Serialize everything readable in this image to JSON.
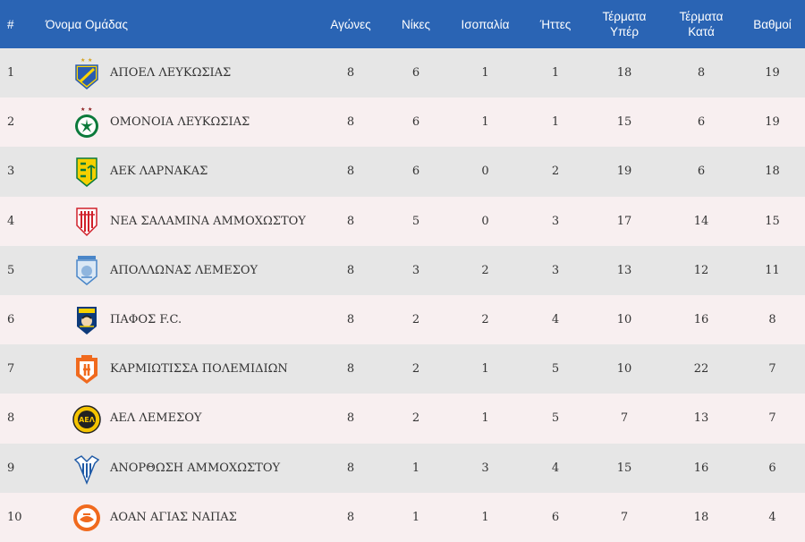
{
  "header": {
    "pos": "#",
    "team": "Όνομα Ομάδας",
    "played": "Αγώνες",
    "wins": "Νίκες",
    "draws": "Ισοπαλία",
    "losses": "Ήττες",
    "goals_for_1": "Τέρματα",
    "goals_for_2": "Υπέρ",
    "goals_against_1": "Τέρματα",
    "goals_against_2": "Κατά",
    "points": "Βαθμοί"
  },
  "rows": [
    {
      "pos": "1",
      "team": "ΑΠΟΕΛ ΛΕΥΚΩΣΙΑΣ",
      "logo": "apoel-logo",
      "played": "8",
      "wins": "6",
      "draws": "1",
      "losses": "1",
      "gf": "18",
      "ga": "8",
      "pts": "19"
    },
    {
      "pos": "2",
      "team": "ΟΜΟΝΟΙΑ ΛΕΥΚΩΣΙΑΣ",
      "logo": "omonoia-logo",
      "played": "8",
      "wins": "6",
      "draws": "1",
      "losses": "1",
      "gf": "15",
      "ga": "6",
      "pts": "19"
    },
    {
      "pos": "3",
      "team": "ΑΕΚ ΛΑΡΝΑΚΑΣ",
      "logo": "aek-logo",
      "played": "8",
      "wins": "6",
      "draws": "0",
      "losses": "2",
      "gf": "19",
      "ga": "6",
      "pts": "18"
    },
    {
      "pos": "4",
      "team": "ΝΕΑ ΣΑΛΑΜΙΝΑ ΑΜΜΟΧΩΣΤΟΥ",
      "logo": "nea-salamina-logo",
      "played": "8",
      "wins": "5",
      "draws": "0",
      "losses": "3",
      "gf": "17",
      "ga": "14",
      "pts": "15"
    },
    {
      "pos": "5",
      "team": "ΑΠΟΛΛΩΝΑΣ ΛΕΜΕΣΟΥ",
      "logo": "apollon-logo",
      "played": "8",
      "wins": "3",
      "draws": "2",
      "losses": "3",
      "gf": "13",
      "ga": "12",
      "pts": "11"
    },
    {
      "pos": "6",
      "team": "ΠΑΦΟΣ F.C.",
      "logo": "pafos-logo",
      "played": "8",
      "wins": "2",
      "draws": "2",
      "losses": "4",
      "gf": "10",
      "ga": "16",
      "pts": "8"
    },
    {
      "pos": "7",
      "team": "ΚΑΡΜΙΩΤΙΣΣΑ ΠΟΛΕΜΙΔΙΩΝ",
      "logo": "karmiotissa-logo",
      "played": "8",
      "wins": "2",
      "draws": "1",
      "losses": "5",
      "gf": "10",
      "ga": "22",
      "pts": "7"
    },
    {
      "pos": "8",
      "team": "ΑΕΛ ΛΕΜΕΣΟΥ",
      "logo": "ael-logo",
      "played": "8",
      "wins": "2",
      "draws": "1",
      "losses": "5",
      "gf": "7",
      "ga": "13",
      "pts": "7"
    },
    {
      "pos": "9",
      "team": "ΑΝΟΡΘΩΣΗ ΑΜΜΟΧΩΣΤΟΥ",
      "logo": "anorthosis-logo",
      "played": "8",
      "wins": "1",
      "draws": "3",
      "losses": "4",
      "gf": "15",
      "ga": "16",
      "pts": "6"
    },
    {
      "pos": "10",
      "team": "ΑΟΑΝ ΑΓΙΑΣ ΝΑΠΑΣ",
      "logo": "aoan-logo",
      "played": "8",
      "wins": "1",
      "draws": "1",
      "losses": "6",
      "gf": "7",
      "ga": "18",
      "pts": "4"
    }
  ],
  "colors": {
    "header_bg": "#2a64b4",
    "row_odd": "#e6e6e6",
    "row_even": "#f8eff0"
  }
}
